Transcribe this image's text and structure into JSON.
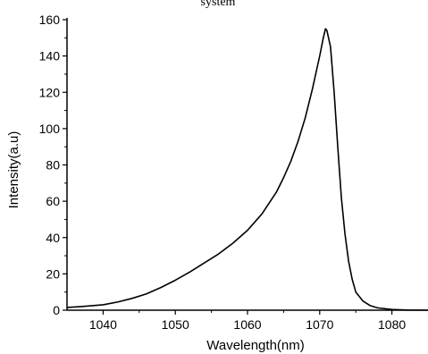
{
  "chart_data": {
    "type": "line",
    "title": "system",
    "xlabel": "Wavelength(nm)",
    "ylabel": "Intensity(a.u)",
    "xlim": [
      1035,
      1085
    ],
    "ylim": [
      0,
      160
    ],
    "x_major_ticks": [
      1040,
      1050,
      1060,
      1070,
      1080
    ],
    "y_major_ticks": [
      0,
      20,
      40,
      60,
      80,
      100,
      120,
      140,
      160
    ],
    "grid": false,
    "legend": "none",
    "line_color": "#000000",
    "series": [
      {
        "x": [
          1035,
          1037,
          1040,
          1042,
          1044,
          1046,
          1048,
          1050,
          1052,
          1054,
          1056,
          1058,
          1060,
          1062,
          1064,
          1065,
          1066,
          1067,
          1068,
          1069,
          1070,
          1070.5,
          1070.8,
          1071,
          1071.5,
          1072,
          1072.5,
          1073,
          1073.5,
          1074,
          1074.5,
          1075,
          1076,
          1077,
          1078,
          1080,
          1082,
          1085
        ],
        "y": [
          1.5,
          2,
          3,
          4.5,
          6.5,
          9,
          12.5,
          16.5,
          21,
          26,
          31,
          37,
          44,
          53,
          65,
          73,
          82,
          93,
          106,
          122,
          140,
          150,
          155,
          154,
          145,
          120,
          90,
          62,
          42,
          27,
          17,
          10,
          5,
          2.5,
          1.3,
          0.4,
          0.1,
          0
        ]
      }
    ]
  }
}
